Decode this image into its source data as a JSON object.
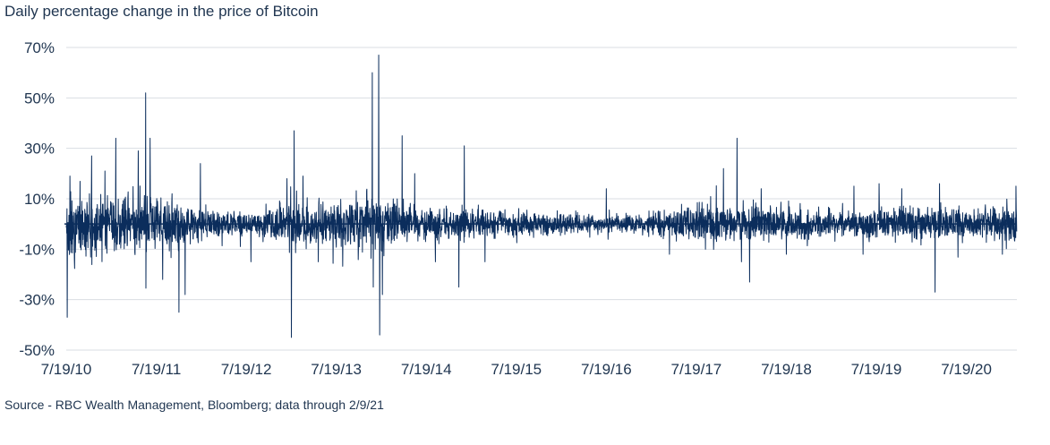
{
  "chart_data": {
    "type": "line",
    "title": "Daily percentage change in the price of Bitcoin",
    "source": "Source - RBC Wealth Management, Bloomberg; data through 2/9/21",
    "xlabel": "",
    "ylabel": "",
    "xlim": [
      2010.549,
      2021.11
    ],
    "ylim": [
      -50,
      70
    ],
    "y_ticks": [
      70,
      50,
      30,
      10,
      -10,
      -30,
      -50
    ],
    "y_tick_labels": [
      "70%",
      "50%",
      "30%",
      "10%",
      "-10%",
      "-30%",
      "-50%"
    ],
    "x_ticks": [
      2010.549,
      2011.549,
      2012.549,
      2013.549,
      2014.549,
      2015.549,
      2016.549,
      2017.549,
      2018.549,
      2019.549,
      2020.549
    ],
    "x_tick_labels": [
      "7/19/10",
      "7/19/11",
      "7/19/12",
      "7/19/13",
      "7/19/14",
      "7/19/15",
      "7/19/16",
      "7/19/17",
      "7/19/18",
      "7/19/19",
      "7/19/20"
    ],
    "grid": "horizontal",
    "series_name": "Daily % change",
    "series_color": "#0b2d5c",
    "volatility_profile": {
      "t": [
        2010.55,
        2010.9,
        2011.2,
        2011.5,
        2011.8,
        2012.2,
        2012.6,
        2013.1,
        2013.5,
        2013.9,
        2014.3,
        2014.8,
        2015.5,
        2016.2,
        2016.8,
        2017.3,
        2017.8,
        2018.2,
        2018.6,
        2019.2,
        2019.6,
        2020.2,
        2020.6,
        2021.11
      ],
      "sigma": [
        6.5,
        5.5,
        5.0,
        6.5,
        4.5,
        2.5,
        2.2,
        4.5,
        4.0,
        5.5,
        3.5,
        3.2,
        2.5,
        1.8,
        1.6,
        2.6,
        4.0,
        4.2,
        3.0,
        2.6,
        3.0,
        3.2,
        2.6,
        3.8
      ]
    },
    "notable_points": [
      {
        "x": 2010.56,
        "y": -37
      },
      {
        "x": 2010.59,
        "y": 19
      },
      {
        "x": 2010.64,
        "y": -14
      },
      {
        "x": 2010.83,
        "y": 27
      },
      {
        "x": 2010.98,
        "y": 21
      },
      {
        "x": 2011.1,
        "y": 34
      },
      {
        "x": 2011.35,
        "y": 29
      },
      {
        "x": 2011.43,
        "y": 52
      },
      {
        "x": 2011.48,
        "y": 34
      },
      {
        "x": 2011.62,
        "y": -22
      },
      {
        "x": 2011.8,
        "y": -35
      },
      {
        "x": 2011.87,
        "y": -28
      },
      {
        "x": 2012.04,
        "y": 24
      },
      {
        "x": 2012.6,
        "y": -15
      },
      {
        "x": 2013.0,
        "y": 18
      },
      {
        "x": 2013.05,
        "y": -45
      },
      {
        "x": 2013.08,
        "y": 37
      },
      {
        "x": 2013.18,
        "y": 19
      },
      {
        "x": 2013.35,
        "y": -15
      },
      {
        "x": 2013.95,
        "y": 60
      },
      {
        "x": 2013.96,
        "y": -25
      },
      {
        "x": 2014.02,
        "y": 67
      },
      {
        "x": 2014.03,
        "y": -44
      },
      {
        "x": 2014.06,
        "y": -28
      },
      {
        "x": 2014.28,
        "y": 35
      },
      {
        "x": 2014.42,
        "y": 20
      },
      {
        "x": 2014.65,
        "y": -15
      },
      {
        "x": 2014.91,
        "y": -25
      },
      {
        "x": 2014.97,
        "y": 31
      },
      {
        "x": 2015.2,
        "y": -15
      },
      {
        "x": 2016.55,
        "y": 14
      },
      {
        "x": 2017.25,
        "y": -12
      },
      {
        "x": 2017.65,
        "y": -10
      },
      {
        "x": 2017.85,
        "y": 22
      },
      {
        "x": 2018.0,
        "y": 34
      },
      {
        "x": 2018.05,
        "y": -15
      },
      {
        "x": 2018.14,
        "y": -23
      },
      {
        "x": 2018.27,
        "y": 14
      },
      {
        "x": 2018.55,
        "y": -12
      },
      {
        "x": 2019.3,
        "y": 15
      },
      {
        "x": 2019.4,
        "y": -12
      },
      {
        "x": 2019.58,
        "y": 16
      },
      {
        "x": 2019.83,
        "y": 14
      },
      {
        "x": 2020.2,
        "y": -27
      },
      {
        "x": 2020.25,
        "y": 16
      },
      {
        "x": 2020.95,
        "y": -12
      },
      {
        "x": 2021.1,
        "y": 15
      }
    ]
  }
}
